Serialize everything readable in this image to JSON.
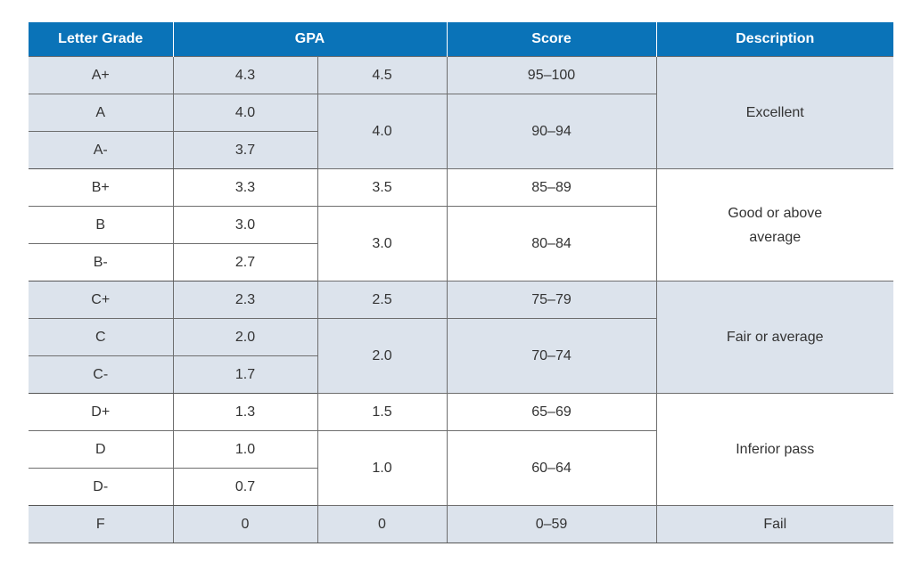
{
  "headers": {
    "letter": "Letter Grade",
    "gpa": "GPA",
    "score": "Score",
    "description": "Description"
  },
  "groups": [
    {
      "description": "Excellent",
      "rows": [
        {
          "letter": "A+",
          "gpa": "4.3",
          "gpa2": "4.5",
          "score": "95–100"
        },
        {
          "letter": "A",
          "gpa": "4.0",
          "gpa2": "4.0",
          "score": "90–94"
        },
        {
          "letter": "A-",
          "gpa": "3.7"
        }
      ]
    },
    {
      "description_line1": "Good or above",
      "description_line2": "average",
      "rows": [
        {
          "letter": "B+",
          "gpa": "3.3",
          "gpa2": "3.5",
          "score": "85–89"
        },
        {
          "letter": "B",
          "gpa": "3.0",
          "gpa2": "3.0",
          "score": "80–84"
        },
        {
          "letter": "B-",
          "gpa": "2.7"
        }
      ]
    },
    {
      "description": "Fair or average",
      "rows": [
        {
          "letter": "C+",
          "gpa": "2.3",
          "gpa2": "2.5",
          "score": "75–79"
        },
        {
          "letter": "C",
          "gpa": "2.0",
          "gpa2": "2.0",
          "score": "70–74"
        },
        {
          "letter": "C-",
          "gpa": "1.7"
        }
      ]
    },
    {
      "description": "Inferior pass",
      "rows": [
        {
          "letter": "D+",
          "gpa": "1.3",
          "gpa2": "1.5",
          "score": "65–69"
        },
        {
          "letter": "D",
          "gpa": "1.0",
          "gpa2": "1.0",
          "score": "60–64"
        },
        {
          "letter": "D-",
          "gpa": "0.7"
        }
      ]
    },
    {
      "description": "Fail",
      "rows": [
        {
          "letter": "F",
          "gpa": "0",
          "gpa2": "0",
          "score": "0–59"
        }
      ]
    }
  ],
  "colors": {
    "header_bg": "#0a73b8",
    "shaded_bg": "#dce3ec"
  }
}
